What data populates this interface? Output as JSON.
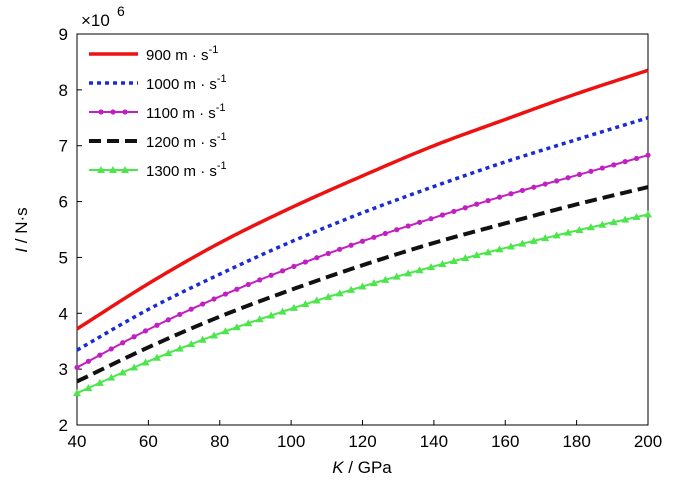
{
  "chart_data": {
    "type": "line",
    "xlabel_var": "K",
    "xlabel_unit": " / GPa",
    "ylabel_var": "I",
    "ylabel_unit": " / N·s",
    "y_multiplier": "×10",
    "y_multiplier_exp": "6",
    "xlim": [
      40,
      200
    ],
    "ylim": [
      2,
      9
    ],
    "xticks": [
      40,
      60,
      80,
      100,
      120,
      140,
      160,
      180,
      200
    ],
    "yticks": [
      2,
      3,
      4,
      5,
      6,
      7,
      8,
      9
    ],
    "legend_position": "top-left",
    "grid": false,
    "x": [
      40,
      60,
      80,
      100,
      120,
      140,
      160,
      180,
      200
    ],
    "series": [
      {
        "name": "900",
        "name_unit": " m · s",
        "name_exp": "-1",
        "color": "#ee1111",
        "style": "solid",
        "marker": "none",
        "values": [
          3.72,
          4.53,
          5.26,
          5.89,
          6.46,
          7.0,
          7.47,
          7.93,
          8.35
        ]
      },
      {
        "name": "1000",
        "name_unit": " m · s",
        "name_exp": "-1",
        "color": "#1a2bd6",
        "style": "dotted",
        "marker": "none",
        "values": [
          3.34,
          4.07,
          4.7,
          5.28,
          5.8,
          6.27,
          6.71,
          7.11,
          7.5
        ]
      },
      {
        "name": "1100",
        "name_unit": " m · s",
        "name_exp": "-1",
        "color": "#c21fc2",
        "style": "solid",
        "marker": "dot",
        "values": [
          3.03,
          3.71,
          4.3,
          4.82,
          5.29,
          5.71,
          6.11,
          6.47,
          6.83
        ]
      },
      {
        "name": "1200",
        "name_unit": " m · s",
        "name_exp": "-1",
        "color": "#111111",
        "style": "dashed",
        "marker": "none",
        "values": [
          2.78,
          3.39,
          3.94,
          4.42,
          4.86,
          5.26,
          5.61,
          5.95,
          6.26
        ]
      },
      {
        "name": "1300",
        "name_unit": " m · s",
        "name_exp": "-1",
        "color": "#4ce64c",
        "style": "solid",
        "marker": "triangle",
        "values": [
          2.57,
          3.14,
          3.64,
          4.08,
          4.48,
          4.84,
          5.17,
          5.48,
          5.77
        ]
      }
    ]
  }
}
